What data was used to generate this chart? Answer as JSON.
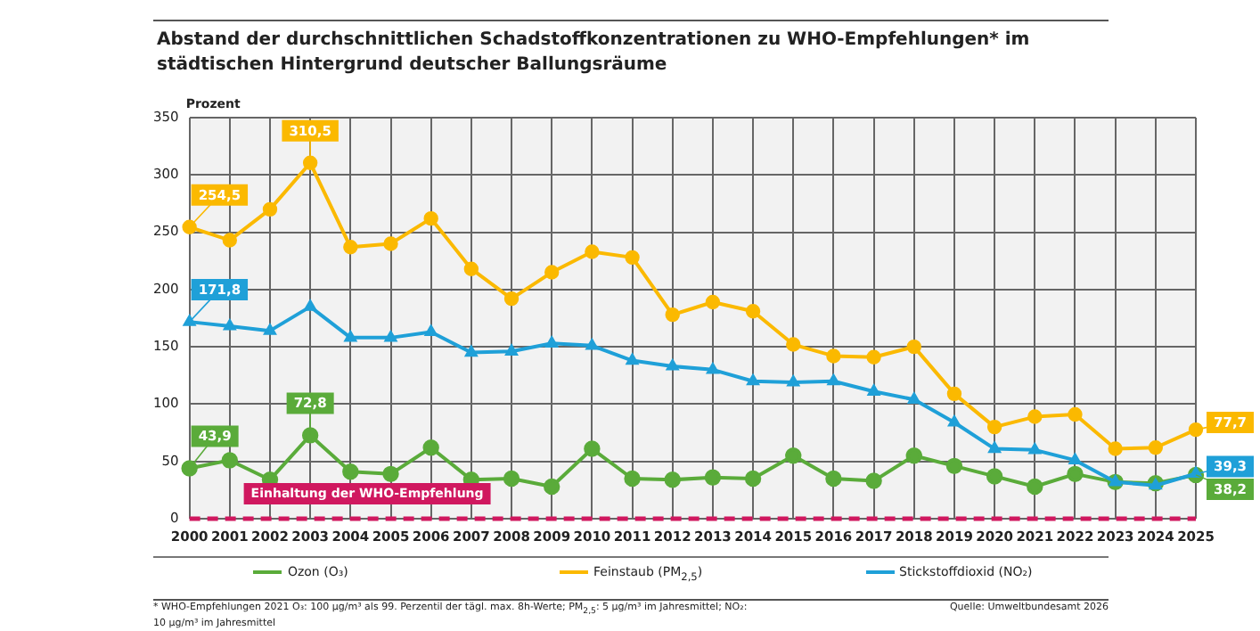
{
  "chart_data": {
    "type": "line",
    "title": "Abstand der durchschnittlichen Schadstoffkonzentrationen zu WHO-Empfehlungen* im städtischen Hintergrund deutscher Ballungsräume",
    "ylabel": "Prozent",
    "categories": [
      "2000",
      "2001",
      "2002",
      "2003",
      "2004",
      "2005",
      "2006",
      "2007",
      "2008",
      "2009",
      "2010",
      "2011",
      "2012",
      "2013",
      "2014",
      "2015",
      "2016",
      "2017",
      "2018",
      "2019",
      "2020",
      "2021",
      "2022",
      "2023",
      "2024",
      "2025"
    ],
    "series": [
      {
        "name": "Ozon (O₃)",
        "color": "#5aab3a",
        "marker": "circle",
        "values": [
          43.9,
          51,
          34,
          72.8,
          41,
          39,
          62,
          34,
          35,
          28,
          61,
          35,
          34,
          36,
          35,
          55,
          35,
          33,
          55,
          46,
          37,
          28,
          39,
          32,
          31,
          38.2
        ],
        "value_labels": [
          "43,9",
          null,
          null,
          "72,8",
          null,
          null,
          null,
          null,
          null,
          null,
          null,
          null,
          null,
          null,
          null,
          null,
          null,
          null,
          null,
          null,
          null,
          null,
          null,
          null,
          null,
          "38,2"
        ]
      },
      {
        "name": "Feinstaub (PM$_{2,5}$)",
        "color": "#fbb900",
        "marker": "circle",
        "values": [
          254.5,
          243,
          270,
          310.5,
          237,
          240,
          262,
          218,
          192,
          215,
          233,
          228,
          178,
          189,
          181,
          152,
          142,
          141,
          150,
          109,
          80,
          89,
          91,
          61,
          62,
          77.7
        ],
        "value_labels": [
          "254,5",
          null,
          null,
          "310,5",
          null,
          null,
          null,
          null,
          null,
          null,
          null,
          null,
          null,
          null,
          null,
          null,
          null,
          null,
          null,
          null,
          null,
          null,
          null,
          null,
          null,
          "77,7"
        ]
      },
      {
        "name": "Stickstoffdioxid (NO₂)",
        "color": "#1fa0d8",
        "marker": "triangle",
        "values": [
          171.8,
          168,
          164,
          185,
          158,
          158,
          163,
          145,
          146,
          153,
          151,
          138,
          133,
          130,
          120,
          119,
          120,
          111,
          104,
          84,
          61,
          60,
          51,
          32,
          29,
          39.3
        ],
        "value_labels": [
          "171,8",
          null,
          null,
          null,
          null,
          null,
          null,
          null,
          null,
          null,
          null,
          null,
          null,
          null,
          null,
          null,
          null,
          null,
          null,
          null,
          null,
          null,
          null,
          null,
          null,
          "39,3"
        ]
      }
    ],
    "ylim": [
      0,
      350
    ],
    "yticks": [
      0,
      50,
      100,
      150,
      200,
      250,
      300,
      350
    ],
    "grid": true,
    "legend": "bottom",
    "ref_lines": [
      {
        "axis": "y",
        "value": 0,
        "label": "Einhaltung der WHO-Empfehlung",
        "color": "#d0185f",
        "line_style": "dashed"
      }
    ],
    "annotations": [
      "* WHO-Empfehlungen 2021 O₃: 100 µg/m³ als 99. Perzentil der tägl. max. 8h-Werte; PM$_{2,5}$: 5 µg/m³ im Jahresmittel; NO₂: 10 µg/m³ im Jahresmittel",
      "Quelle: Umweltbundesamt 2026"
    ]
  }
}
